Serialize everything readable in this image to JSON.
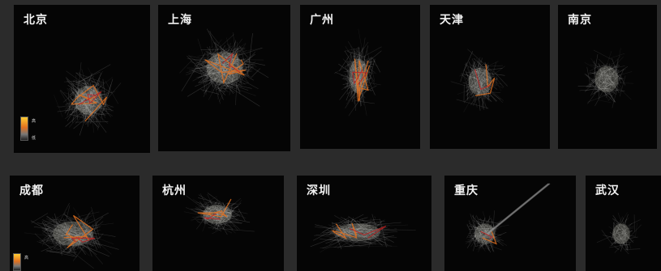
{
  "panels": [
    {
      "id": "beijing",
      "title": "北京",
      "legend": {
        "high": "高",
        "low": "低"
      }
    },
    {
      "id": "shanghai",
      "title": "上海"
    },
    {
      "id": "guangzhou",
      "title": "广州"
    },
    {
      "id": "tianjin",
      "title": "天津"
    },
    {
      "id": "nanjing",
      "title": "南京"
    },
    {
      "id": "chengdu",
      "title": "成都",
      "legend": {
        "high": "高"
      }
    },
    {
      "id": "hangzhou",
      "title": "杭州"
    },
    {
      "id": "shenzhen",
      "title": "深圳"
    },
    {
      "id": "chongqing",
      "title": "重庆"
    },
    {
      "id": "wuhan",
      "title": "武汉"
    }
  ],
  "colors": {
    "background": "#2b2b2b",
    "panel": "#050505",
    "flow_low": "#bbbbbb",
    "flow_mid": "#e07020",
    "flow_high": "#ffcc33",
    "flow_top": "#c02020"
  }
}
